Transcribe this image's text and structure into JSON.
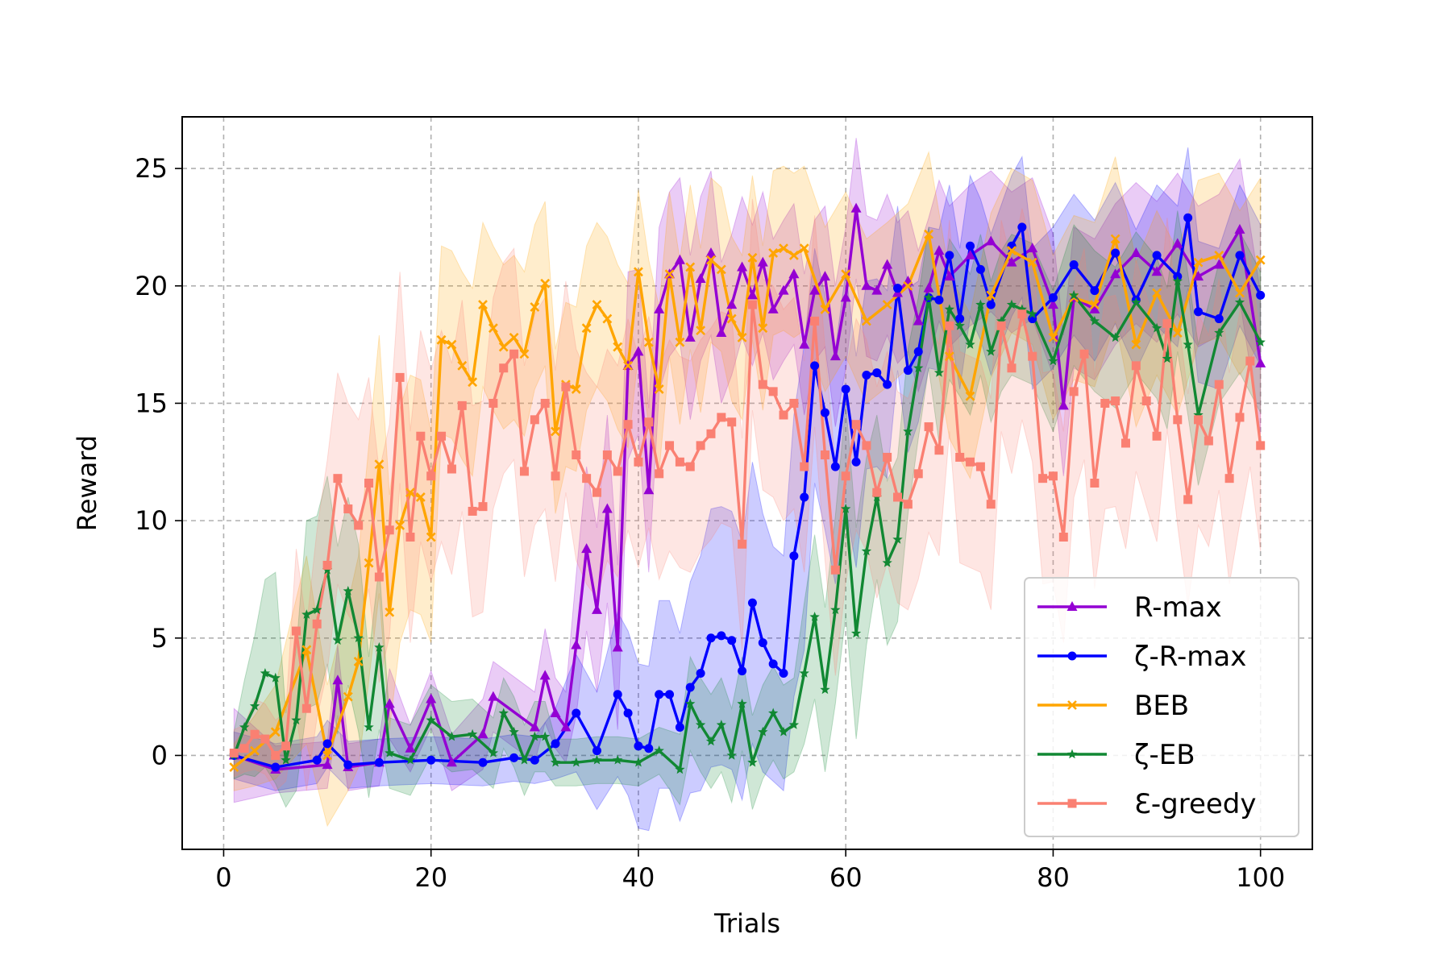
{
  "chart_data": {
    "type": "line",
    "title": "",
    "xlabel": "Trials",
    "ylabel": "Reward",
    "xlim": [
      -4,
      105
    ],
    "ylim": [
      -4,
      27.2
    ],
    "xticks": [
      0,
      20,
      40,
      60,
      80,
      100
    ],
    "yticks": [
      0,
      5,
      10,
      15,
      20,
      25
    ],
    "grid": true,
    "legend_position": "lower-right",
    "series": [
      {
        "name": "R-max",
        "color": "#9400D3",
        "marker": "triangle",
        "x": [
          1,
          5,
          10,
          11,
          12,
          15,
          16,
          18,
          20,
          22,
          25,
          26,
          30,
          31,
          32,
          33,
          34,
          35,
          36,
          37,
          38,
          39,
          40,
          41,
          42,
          43,
          44,
          45,
          46,
          47,
          48,
          49,
          50,
          51,
          52,
          53,
          54,
          55,
          56,
          57,
          58,
          59,
          60,
          61,
          62,
          63,
          64,
          65,
          66,
          67,
          68,
          69,
          70,
          72,
          74,
          76,
          78,
          80,
          81,
          82,
          84,
          86,
          88,
          90,
          92,
          94,
          96,
          98,
          100
        ],
        "y": [
          0,
          -0.6,
          -0.4,
          3.2,
          -0.5,
          -0.3,
          2.2,
          0.3,
          2.4,
          -0.3,
          0.9,
          2.5,
          1.2,
          3.4,
          1.8,
          1.2,
          4.7,
          8.8,
          6.2,
          10.5,
          4.6,
          16.6,
          17.2,
          11.3,
          19.0,
          20.5,
          21.1,
          17.8,
          20.3,
          21.4,
          18.0,
          19.2,
          20.8,
          19.6,
          21.0,
          19.0,
          19.8,
          20.5,
          17.5,
          19.8,
          20.4,
          17.0,
          19.5,
          23.3,
          20.0,
          19.8,
          20.9,
          19.7,
          20.2,
          18.5,
          19.9,
          21.5,
          20.4,
          21.3,
          21.9,
          21.0,
          21.6,
          19.2,
          14.9,
          19.5,
          19.0,
          20.5,
          21.4,
          20.6,
          21.8,
          20.4,
          20.9,
          22.4,
          16.7
        ],
        "band": [
          2.0,
          1.0,
          1.0,
          1.5,
          1.0,
          1.0,
          1.5,
          1.0,
          1.2,
          1.2,
          1.5,
          1.5,
          1.5,
          2.0,
          1.5,
          1.5,
          3.0,
          3.5,
          3.5,
          4.0,
          3.5,
          4.0,
          3.5,
          3.5,
          3.5,
          3.5,
          3.5,
          3.5,
          3.5,
          3.5,
          3.0,
          3.0,
          3.0,
          3.0,
          3.0,
          3.0,
          3.0,
          3.0,
          3.0,
          3.0,
          3.0,
          3.0,
          3.0,
          3.0,
          3.0,
          3.0,
          3.0,
          3.0,
          3.0,
          3.0,
          3.0,
          3.0,
          3.0,
          3.0,
          3.0,
          3.0,
          3.0,
          3.0,
          3.0,
          3.0,
          3.0,
          3.0,
          3.0,
          3.0,
          3.0,
          3.0,
          3.0,
          3.0,
          3.0
        ]
      },
      {
        "name": "ζ-R-max",
        "color": "#0000FF",
        "marker": "circle",
        "x": [
          1,
          5,
          9,
          10,
          12,
          15,
          20,
          25,
          28,
          30,
          32,
          34,
          36,
          38,
          39,
          40,
          41,
          42,
          43,
          44,
          45,
          46,
          47,
          48,
          49,
          50,
          51,
          52,
          53,
          54,
          55,
          56,
          57,
          58,
          59,
          60,
          61,
          62,
          63,
          64,
          65,
          66,
          67,
          68,
          69,
          70,
          71,
          72,
          73,
          74,
          76,
          77,
          78,
          80,
          82,
          84,
          86,
          88,
          90,
          92,
          93,
          94,
          96,
          98,
          100
        ],
        "y": [
          0,
          -0.5,
          -0.2,
          0.5,
          -0.4,
          -0.3,
          -0.2,
          -0.3,
          -0.1,
          -0.2,
          0.5,
          1.8,
          0.2,
          2.6,
          1.8,
          0.4,
          0.3,
          2.6,
          2.6,
          1.2,
          2.9,
          3.5,
          5.0,
          5.1,
          4.9,
          3.6,
          6.5,
          4.8,
          3.9,
          3.5,
          8.5,
          11.0,
          16.6,
          14.6,
          12.3,
          15.6,
          12.5,
          16.2,
          16.3,
          15.8,
          19.9,
          16.4,
          17.2,
          19.5,
          19.4,
          21.3,
          18.6,
          21.7,
          20.7,
          19.2,
          21.7,
          22.5,
          18.6,
          19.5,
          20.9,
          19.8,
          21.4,
          19.4,
          21.3,
          20.4,
          22.9,
          18.9,
          18.6,
          21.3,
          19.6
        ],
        "band": [
          1.0,
          1.0,
          1.0,
          1.0,
          1.0,
          1.0,
          1.0,
          1.0,
          1.0,
          1.0,
          1.5,
          2.5,
          2.5,
          3.5,
          3.5,
          3.5,
          3.5,
          4.0,
          4.0,
          4.0,
          4.5,
          5.0,
          5.5,
          5.5,
          5.5,
          5.5,
          6.0,
          5.5,
          5.0,
          5.0,
          6.0,
          6.5,
          5.0,
          5.0,
          5.0,
          5.0,
          4.5,
          4.0,
          4.0,
          4.0,
          3.5,
          3.5,
          3.0,
          3.0,
          3.0,
          3.0,
          3.0,
          3.0,
          3.0,
          3.0,
          3.0,
          3.0,
          3.0,
          3.0,
          3.0,
          3.0,
          3.0,
          3.0,
          3.0,
          3.0,
          3.0,
          3.0,
          3.0,
          3.0,
          3.0
        ]
      },
      {
        "name": "BEB",
        "color": "#FFA500",
        "marker": "x",
        "x": [
          1,
          3,
          5,
          8,
          10,
          12,
          13,
          14,
          15,
          16,
          17,
          18,
          19,
          20,
          21,
          22,
          23,
          24,
          25,
          26,
          27,
          28,
          29,
          30,
          31,
          32,
          33,
          34,
          35,
          36,
          37,
          38,
          39,
          40,
          41,
          42,
          43,
          44,
          45,
          46,
          47,
          48,
          49,
          50,
          51,
          52,
          53,
          54,
          55,
          56,
          58,
          60,
          62,
          64,
          66,
          68,
          70,
          72,
          74,
          76,
          78,
          80,
          82,
          84,
          86,
          88,
          90,
          92,
          94,
          96,
          98,
          100
        ],
        "y": [
          -0.5,
          0.2,
          1.0,
          4.5,
          0.0,
          2.5,
          4.0,
          8.2,
          12.4,
          6.1,
          9.8,
          11.2,
          11.0,
          9.3,
          17.7,
          17.5,
          16.6,
          15.9,
          19.2,
          18.2,
          17.4,
          17.8,
          17.1,
          19.1,
          20.1,
          13.8,
          15.8,
          15.6,
          18.2,
          19.2,
          18.6,
          17.4,
          16.6,
          20.6,
          17.6,
          15.6,
          20.5,
          17.6,
          20.8,
          18.1,
          21.1,
          20.7,
          18.6,
          17.8,
          21.2,
          18.2,
          21.4,
          21.6,
          21.3,
          21.6,
          19.0,
          20.5,
          18.5,
          19.2,
          20.0,
          22.2,
          17.0,
          15.3,
          19.6,
          21.5,
          21.0,
          17.8,
          19.5,
          19.2,
          22.0,
          17.5,
          19.7,
          18.0,
          21.0,
          21.3,
          19.7,
          21.1
        ],
        "band": [
          1.0,
          1.5,
          2.0,
          4.0,
          3.0,
          4.0,
          4.5,
          5.0,
          5.5,
          5.0,
          5.0,
          5.0,
          5.0,
          4.5,
          4.0,
          4.0,
          4.0,
          4.0,
          3.5,
          3.5,
          3.5,
          3.5,
          3.5,
          3.5,
          3.5,
          3.5,
          3.5,
          3.5,
          3.5,
          3.5,
          3.5,
          3.5,
          3.5,
          3.5,
          3.5,
          3.5,
          3.5,
          3.5,
          3.5,
          3.5,
          3.5,
          3.5,
          3.5,
          3.5,
          3.5,
          3.5,
          3.5,
          3.5,
          3.5,
          3.5,
          3.5,
          3.5,
          3.5,
          3.5,
          3.5,
          3.5,
          3.5,
          3.5,
          3.5,
          3.5,
          3.5,
          3.5,
          3.5,
          3.5,
          3.5,
          3.5,
          3.5,
          3.5,
          3.5,
          3.5,
          3.5,
          3.5
        ]
      },
      {
        "name": "ζ-EB",
        "color": "#118833",
        "marker": "star",
        "x": [
          1,
          2,
          3,
          4,
          5,
          6,
          7,
          8,
          9,
          10,
          11,
          12,
          13,
          14,
          15,
          16,
          18,
          20,
          22,
          24,
          26,
          27,
          28,
          29,
          30,
          31,
          32,
          34,
          36,
          38,
          40,
          42,
          44,
          45,
          46,
          47,
          48,
          49,
          50,
          51,
          52,
          53,
          54,
          55,
          56,
          57,
          58,
          59,
          60,
          61,
          62,
          63,
          64,
          65,
          66,
          67,
          68,
          69,
          70,
          71,
          72,
          73,
          74,
          75,
          76,
          77,
          78,
          80,
          82,
          84,
          86,
          88,
          90,
          91,
          92,
          93,
          94,
          96,
          98,
          100
        ],
        "y": [
          0,
          1.2,
          2.1,
          3.5,
          3.3,
          -0.2,
          1.5,
          6.0,
          6.2,
          7.9,
          4.9,
          7.0,
          5.0,
          1.2,
          4.6,
          0.1,
          -0.2,
          1.5,
          0.8,
          0.9,
          0.1,
          1.8,
          1.0,
          -0.2,
          0.8,
          0.8,
          -0.3,
          -0.3,
          -0.2,
          -0.2,
          -0.3,
          0.2,
          -0.6,
          2.2,
          1.3,
          0.6,
          1.3,
          0.0,
          2.2,
          -0.3,
          1.0,
          1.8,
          1.0,
          1.3,
          3.5,
          5.9,
          2.8,
          6.2,
          10.5,
          5.2,
          8.7,
          11.0,
          8.2,
          9.2,
          13.8,
          16.5,
          19.5,
          16.3,
          19.0,
          18.3,
          17.5,
          19.2,
          17.2,
          18.5,
          19.2,
          19.0,
          18.8,
          16.8,
          19.6,
          18.5,
          17.8,
          19.3,
          18.2,
          16.9,
          20.2,
          17.5,
          14.5,
          18.0,
          19.3,
          17.6
        ],
        "band": [
          1.0,
          2.0,
          3.0,
          4.0,
          4.5,
          2.0,
          3.0,
          4.0,
          4.0,
          4.0,
          4.0,
          4.0,
          4.0,
          3.0,
          3.5,
          1.5,
          1.5,
          1.5,
          1.5,
          1.5,
          1.5,
          1.5,
          1.5,
          1.5,
          1.5,
          1.5,
          1.0,
          1.0,
          1.0,
          1.0,
          1.0,
          1.0,
          1.5,
          2.0,
          2.0,
          2.0,
          2.0,
          2.0,
          2.0,
          2.0,
          2.0,
          2.0,
          2.0,
          2.0,
          3.0,
          3.5,
          3.5,
          4.0,
          4.5,
          4.5,
          4.0,
          3.5,
          3.5,
          3.5,
          3.5,
          3.0,
          3.0,
          3.0,
          3.0,
          3.0,
          3.0,
          3.0,
          3.0,
          3.0,
          3.0,
          3.0,
          3.0,
          3.0,
          3.0,
          3.0,
          3.0,
          3.0,
          3.0,
          3.0,
          3.0,
          3.0,
          3.0,
          3.0,
          3.0,
          3.0
        ]
      },
      {
        "name": "Ɛ-greedy",
        "color": "#FA8072",
        "marker": "square",
        "x": [
          1,
          2,
          3,
          4,
          5,
          6,
          7,
          8,
          9,
          10,
          11,
          12,
          13,
          14,
          15,
          16,
          17,
          18,
          19,
          20,
          21,
          22,
          23,
          24,
          25,
          26,
          27,
          28,
          29,
          30,
          31,
          32,
          33,
          34,
          35,
          36,
          37,
          38,
          39,
          40,
          41,
          42,
          43,
          44,
          45,
          46,
          47,
          48,
          49,
          50,
          51,
          52,
          53,
          54,
          55,
          56,
          57,
          58,
          59,
          60,
          61,
          62,
          63,
          64,
          65,
          66,
          67,
          68,
          69,
          70,
          71,
          72,
          73,
          74,
          75,
          76,
          77,
          78,
          79,
          80,
          81,
          82,
          83,
          84,
          85,
          86,
          87,
          88,
          89,
          90,
          91,
          92,
          93,
          94,
          95,
          96,
          97,
          98,
          99,
          100
        ],
        "y": [
          0.1,
          0.3,
          0.9,
          0.7,
          0.0,
          0.4,
          5.3,
          2.0,
          5.6,
          8.1,
          11.8,
          10.5,
          9.8,
          11.6,
          7.6,
          9.6,
          16.1,
          9.3,
          13.6,
          11.9,
          13.6,
          12.2,
          14.9,
          10.4,
          10.6,
          15.0,
          16.5,
          17.1,
          12.1,
          14.3,
          15.0,
          11.9,
          15.7,
          12.8,
          11.8,
          11.2,
          12.8,
          12.1,
          14.1,
          12.5,
          14.2,
          12.0,
          13.2,
          12.5,
          12.3,
          13.2,
          13.7,
          14.4,
          14.2,
          9.0,
          19.2,
          15.8,
          15.5,
          14.5,
          15.0,
          12.3,
          18.5,
          12.8,
          7.9,
          11.9,
          14.1,
          13.2,
          11.2,
          12.7,
          11.0,
          10.7,
          12.0,
          14.0,
          13.0,
          18.3,
          12.7,
          12.5,
          12.3,
          10.7,
          18.3,
          16.5,
          18.8,
          17.0,
          11.8,
          11.9,
          9.3,
          15.5,
          17.1,
          11.6,
          15.0,
          15.1,
          13.3,
          16.6,
          15.1,
          13.6,
          18.4,
          14.3,
          10.9,
          14.3,
          13.4,
          15.8,
          11.8,
          14.4,
          16.8,
          13.2
        ],
        "band": [
          1.0,
          1.0,
          1.5,
          1.5,
          1.5,
          1.5,
          3.5,
          3.5,
          4.0,
          4.5,
          4.5,
          4.5,
          4.5,
          4.5,
          4.5,
          4.5,
          4.5,
          4.5,
          4.5,
          4.5,
          4.5,
          4.5,
          4.5,
          4.5,
          4.5,
          4.5,
          4.5,
          4.5,
          4.5,
          4.5,
          4.5,
          4.5,
          4.5,
          4.5,
          4.5,
          4.5,
          4.5,
          4.5,
          4.5,
          4.5,
          4.5,
          4.5,
          4.5,
          4.5,
          4.5,
          4.5,
          4.5,
          4.5,
          4.5,
          4.5,
          4.5,
          4.5,
          4.5,
          4.5,
          4.5,
          4.5,
          4.5,
          4.5,
          4.5,
          4.5,
          4.5,
          4.5,
          4.5,
          4.5,
          4.5,
          4.5,
          4.5,
          4.5,
          4.5,
          4.5,
          4.5,
          4.5,
          4.5,
          4.5,
          4.5,
          4.5,
          4.5,
          4.5,
          4.5,
          4.5,
          4.5,
          4.5,
          4.5,
          4.5,
          4.5,
          4.5,
          4.5,
          4.5,
          4.5,
          4.5,
          4.5,
          4.5,
          4.5,
          4.5,
          4.5,
          4.5,
          4.5,
          4.5,
          4.5,
          4.5
        ]
      }
    ]
  }
}
